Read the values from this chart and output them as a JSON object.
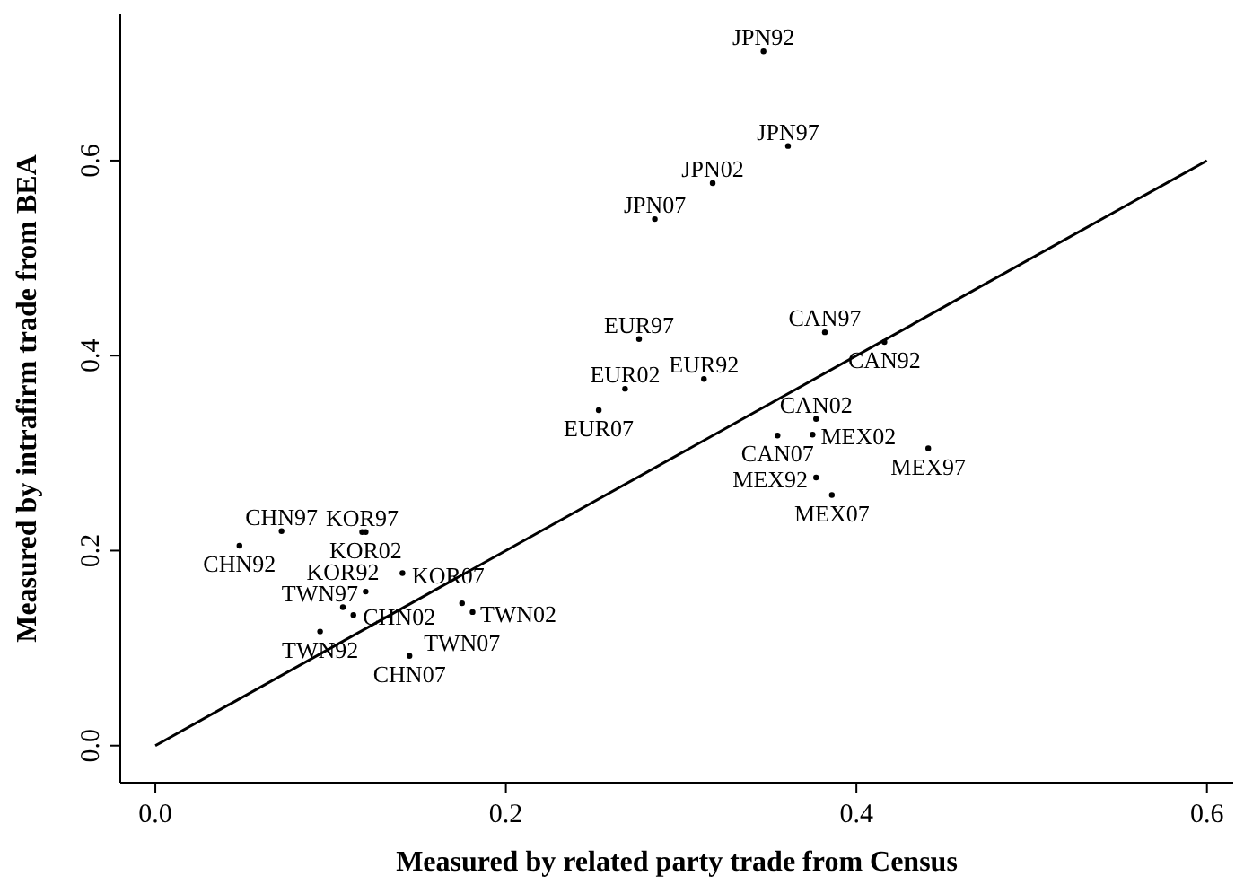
{
  "chart_data": {
    "type": "scatter",
    "xlabel": "Measured by related party trade from Census",
    "ylabel": "Measured by intrafirm trade from BEA",
    "xlim": [
      -0.02,
      0.615
    ],
    "ylim": [
      -0.038,
      0.75
    ],
    "xticks": [
      {
        "value": 0,
        "label": "0.0"
      },
      0.2,
      0.4,
      0.6
    ],
    "yticks": [
      {
        "value": 0,
        "label": "0.0"
      },
      0.2,
      0.4,
      0.6
    ],
    "grid": false,
    "series": [
      {
        "marker": "circle",
        "color": "#000000",
        "x": [
          0.347,
          0.361,
          0.318,
          0.285,
          0.276,
          0.268,
          0.313,
          0.253,
          0.382,
          0.416,
          0.377,
          0.355,
          0.375,
          0.441,
          0.377,
          0.386,
          0.072,
          0.048,
          0.118,
          0.12,
          0.141,
          0.12,
          0.107,
          0.113,
          0.094,
          0.175,
          0.181,
          0.145
        ],
        "values": [
          0.712,
          0.615,
          0.577,
          0.54,
          0.417,
          0.366,
          0.376,
          0.344,
          0.424,
          0.414,
          0.335,
          0.318,
          0.319,
          0.305,
          0.275,
          0.257,
          0.22,
          0.205,
          0.219,
          0.219,
          0.177,
          0.158,
          0.142,
          0.134,
          0.117,
          0.146,
          0.137,
          0.092
        ],
        "value_labels": [
          "JPN92",
          "JPN97",
          "JPN02",
          "JPN07",
          "EUR97",
          "EUR02",
          "EUR92",
          "EUR07",
          "CAN97",
          "CAN92",
          "CAN02",
          "CAN07",
          "MEX02",
          "MEX97",
          "MEX92",
          "MEX07",
          "CHN97",
          "CHN92",
          "KOR97",
          "KOR02",
          "KOR07",
          "TWN97",
          "KOR92",
          "CHN02",
          "TWN92",
          "TWN07",
          "TWN02",
          "CHN07"
        ]
      },
      {
        "type": "line",
        "color": "#000000",
        "line_style": "solid",
        "x": [
          0,
          0.6
        ],
        "values": [
          0,
          0.6
        ]
      }
    ]
  }
}
